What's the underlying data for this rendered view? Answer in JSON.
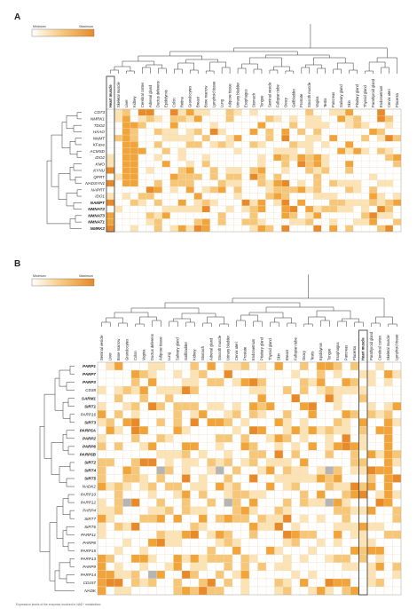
{
  "caption": "Expression levels of the enzymes involved in NAD⁺ metabolism",
  "colors": {
    "scale": [
      "#ffffff",
      "#fbe3b5",
      "#f6c779",
      "#f0a43a",
      "#e8892a"
    ],
    "missing": "#b5b5b5",
    "frame": "#444444",
    "grid": "#f2dfc2"
  },
  "panels": [
    {
      "label": "A",
      "legend": {
        "min": "Minimum",
        "max": "Maximum"
      },
      "columns": [
        "Heart muscle",
        "Skeletal muscle",
        "Liver",
        "Kidney",
        "Cerebral cortex",
        "Adrenal gland",
        "Ductus deferens",
        "Epididymis",
        "Colon",
        "Retina",
        "Granulocytes",
        "Breast",
        "Bone marrow",
        "Lymphoid tissue",
        "Lung",
        "Adipose tissue",
        "Urinary bladder",
        "Esophagus",
        "Stomach",
        "Tongue",
        "Seminal vesicle",
        "Fallopian tube",
        "Ovary",
        "Gallbladder",
        "Prostate",
        "Smooth muscle",
        "Vagina",
        "Testis",
        "Pancreas",
        "Salivary gland",
        "Skin",
        "Pituitary gland",
        "Thyroid gland",
        "Parathyroid gland",
        "Endometrium",
        "Cervix uteri",
        "Placenta"
      ],
      "bold_columns": [
        "Heart muscle"
      ],
      "highlight_column": "Heart muscle",
      "rows": [
        "CD73",
        "NMRK1",
        "TDO2",
        "HAAO",
        "NNMT",
        "KFase",
        "ACMSD",
        "IDO2",
        "KMO",
        "KYNU",
        "QPRT",
        "NADSYN1",
        "NAPRT",
        "IDO1",
        "NAMPT",
        "NMNAT2",
        "NMNAT3",
        "NMNAT1",
        "NMRK2"
      ],
      "bold_rows": [
        "NAMPT",
        "NMNAT2",
        "NMNAT3",
        "NMNAT1",
        "NMRK2"
      ],
      "missing": []
    },
    {
      "label": "B",
      "legend": {
        "min": "Minimum",
        "max": "Maximum"
      },
      "columns": [
        "Seminal vesicle",
        "Liver",
        "Bone marrow",
        "Granulocytes",
        "Colon",
        "Vagina",
        "Ductus deferens",
        "Adipose tissue",
        "Lung",
        "Salivary gland",
        "Gallbladder",
        "Kidney",
        "Stomach",
        "Adrenal gland",
        "Smooth muscle",
        "Urinary bladder",
        "Cervix uteri",
        "Prostate",
        "Endometrium",
        "Pituitary gland",
        "Thyroid gland",
        "Skin",
        "Breast",
        "Fallopian tube",
        "Ovary",
        "Testis",
        "Epididymis",
        "Tongue",
        "Esophagus",
        "Pancreas",
        "Placenta",
        "Heart muscle",
        "Parathyroid gland",
        "Cerebral cortex",
        "Skeletal muscle",
        "Lymphoid tissue"
      ],
      "bold_columns": [
        "Heart muscle"
      ],
      "highlight_column": "Heart muscle",
      "rows": [
        "PARP1",
        "PARP7",
        "PARP3",
        "CD38",
        "SARM1",
        "SIRT1",
        "PARP16",
        "SIRT3",
        "PARP5A",
        "PARP2",
        "PARP6",
        "PARP5B",
        "SIRT2",
        "SIRT4",
        "SIRT5",
        "NADK2",
        "PARP10",
        "PARP12",
        "PARP4",
        "SIRT7",
        "SIRT6",
        "PARP11",
        "PARP8",
        "PARP15",
        "PARP13",
        "PARP9",
        "PARP14",
        "CD157",
        "NADK"
      ],
      "bold_rows": [
        "PARP1",
        "PARP7",
        "PARP3",
        "SARM1",
        "SIRT1",
        "SIRT3",
        "PARP5A",
        "PARP2",
        "PARP6",
        "PARP5B",
        "SIRT2",
        "SIRT4",
        "SIRT5"
      ],
      "missing": [
        [
          13,
          7
        ],
        [
          13,
          14
        ],
        [
          13,
          27
        ],
        [
          17,
          3
        ],
        [
          17,
          15
        ],
        [
          17,
          27
        ],
        [
          26,
          6
        ]
      ]
    }
  ]
}
